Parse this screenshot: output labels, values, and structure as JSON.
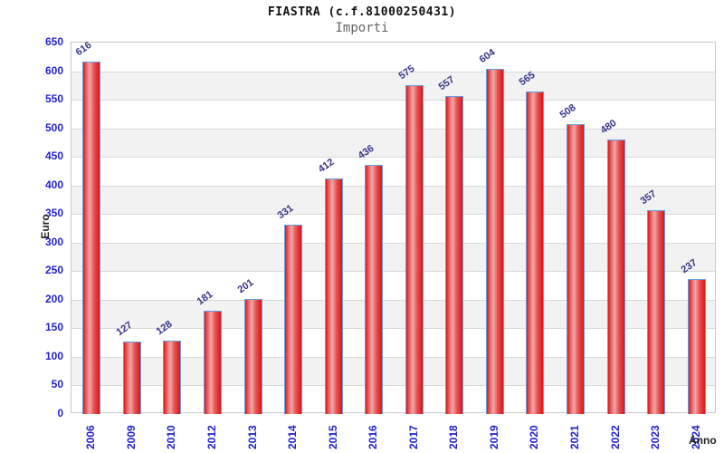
{
  "title": "FIASTRA (c.f.81000250431)",
  "subtitle": "Importi",
  "chart_data": {
    "type": "bar",
    "title": "FIASTRA (c.f.81000250431)",
    "subtitle": "Importi",
    "xlabel": "Anno",
    "ylabel": "Euro",
    "categories": [
      "2006",
      "2009",
      "2010",
      "2012",
      "2013",
      "2014",
      "2015",
      "2016",
      "2017",
      "2018",
      "2019",
      "2020",
      "2021",
      "2022",
      "2023",
      "2024"
    ],
    "values": [
      616,
      127,
      128,
      181,
      201,
      331,
      412,
      436,
      575,
      557,
      604,
      565,
      508,
      480,
      357,
      237
    ],
    "ylim": [
      0,
      650
    ],
    "ytick_step": 50,
    "grid": true,
    "legend_position": "none",
    "colors": {
      "bar_fill_edge": "#e21717",
      "bar_fill_mid": "#f2a8a8",
      "bar_fill_end": "#dd1414",
      "bar_border": "#62a0e3",
      "tick_label": "#2222cc",
      "value_label": "#343489",
      "axis_title": "#222222",
      "band": "#f2f2f2",
      "gridline": "#d9d9d9",
      "title_color": "#111111",
      "subtitle_color": "#666666"
    }
  }
}
